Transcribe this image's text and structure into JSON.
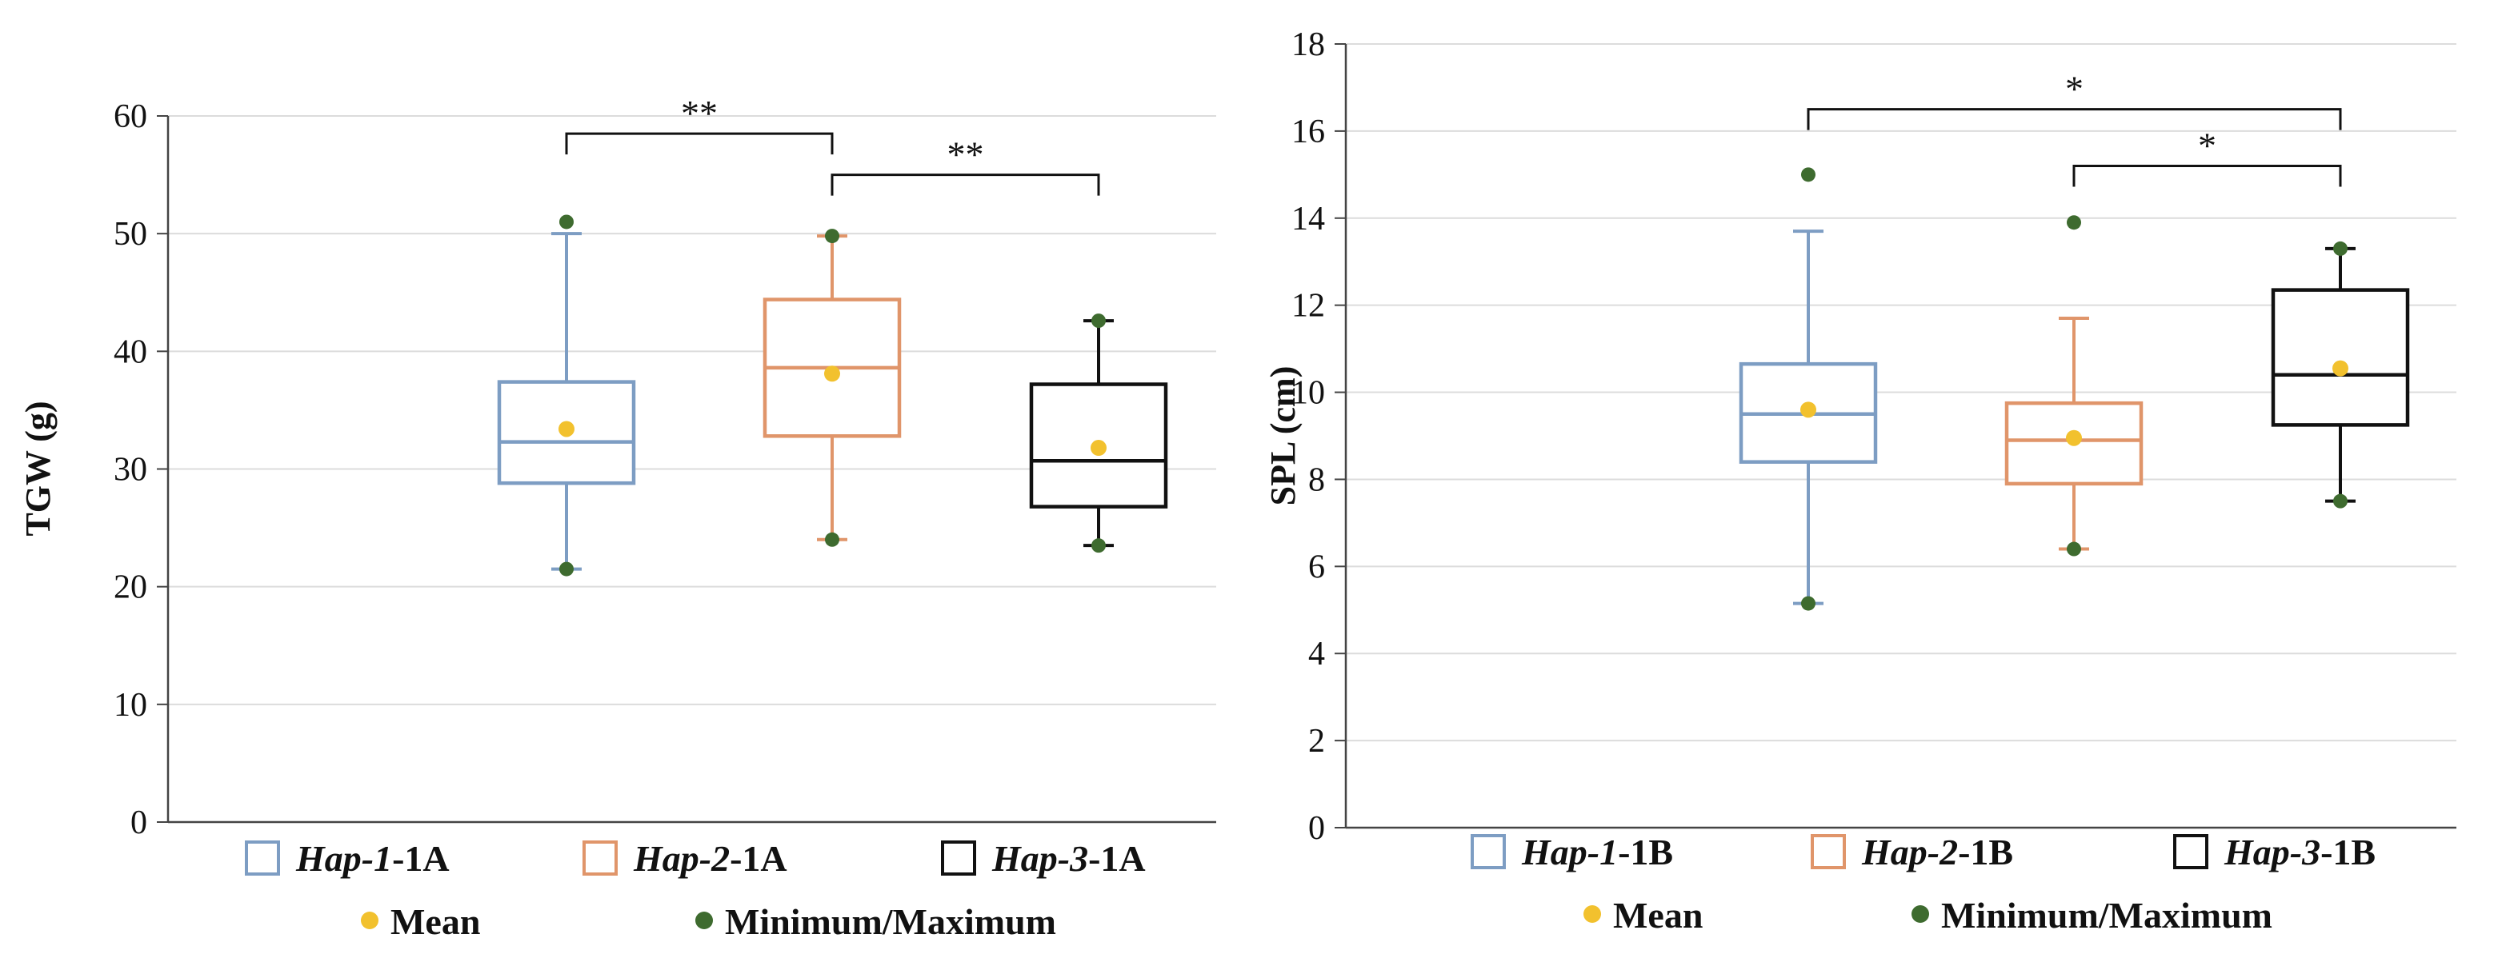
{
  "chart_data": [
    {
      "type": "boxplot",
      "ylabel": "TGW (g)",
      "ylim": [
        0,
        60
      ],
      "yticks": [
        "0",
        "10",
        "20",
        "30",
        "40",
        "50",
        "60"
      ],
      "grid": true,
      "series": [
        {
          "name_italic": "Hap-1",
          "name_suffix": "-1A",
          "color": "#7d9dc3",
          "min": 21.5,
          "whisker_low": 21.5,
          "q1": 28.8,
          "median": 32.3,
          "q3": 37.4,
          "whisker_high": 50.0,
          "max": 51.0,
          "mean": 33.4
        },
        {
          "name_italic": "Hap-2",
          "name_suffix": "-1A",
          "color": "#e0956a",
          "min": 24.0,
          "whisker_low": 24.0,
          "q1": 32.8,
          "median": 38.6,
          "q3": 44.4,
          "whisker_high": 49.8,
          "max": 49.8,
          "mean": 38.1
        },
        {
          "name_italic": "Hap-3",
          "name_suffix": "-1A",
          "color": "#111111",
          "min": 23.5,
          "whisker_low": 23.5,
          "q1": 26.8,
          "median": 30.7,
          "q3": 37.2,
          "whisker_high": 42.6,
          "max": 42.6,
          "mean": 31.8
        }
      ],
      "significance": [
        {
          "from": 0,
          "to": 1,
          "label": "**",
          "y": 58.5
        },
        {
          "from": 1,
          "to": 2,
          "label": "**",
          "y": 55.0
        }
      ],
      "legend": {
        "mean_label": "Mean",
        "minmax_label": "Minimum/Maximum",
        "mean_color": "#f2c12e",
        "minmax_color": "#3e6b2f"
      }
    },
    {
      "type": "boxplot",
      "ylabel": "SPL (cm)",
      "ylim": [
        0,
        18
      ],
      "yticks": [
        "0",
        "2",
        "4",
        "6",
        "8",
        "10",
        "12",
        "14",
        "16",
        "18"
      ],
      "grid": true,
      "series": [
        {
          "name_italic": "Hap-1",
          "name_suffix": "-1B",
          "color": "#7d9dc3",
          "min": 5.15,
          "whisker_low": 5.15,
          "q1": 8.4,
          "median": 9.5,
          "q3": 10.65,
          "whisker_high": 13.7,
          "max": 15.0,
          "mean": 9.6
        },
        {
          "name_italic": "Hap-2",
          "name_suffix": "-1B",
          "color": "#e0956a",
          "min": 6.4,
          "whisker_low": 6.4,
          "q1": 7.9,
          "median": 8.9,
          "q3": 9.75,
          "whisker_high": 11.7,
          "max": 13.9,
          "mean": 8.95
        },
        {
          "name_italic": "Hap-3",
          "name_suffix": "-1B",
          "color": "#111111",
          "min": 7.5,
          "whisker_low": 7.5,
          "q1": 9.25,
          "median": 10.4,
          "q3": 12.35,
          "whisker_high": 13.3,
          "max": 13.3,
          "mean": 10.55
        }
      ],
      "significance": [
        {
          "from": 0,
          "to": 2,
          "label": "*",
          "y": 16.5
        },
        {
          "from": 1,
          "to": 2,
          "label": "*",
          "y": 15.2
        }
      ],
      "legend": {
        "mean_label": "Mean",
        "minmax_label": "Minimum/Maximum",
        "mean_color": "#f2c12e",
        "minmax_color": "#3e6b2f"
      }
    }
  ]
}
